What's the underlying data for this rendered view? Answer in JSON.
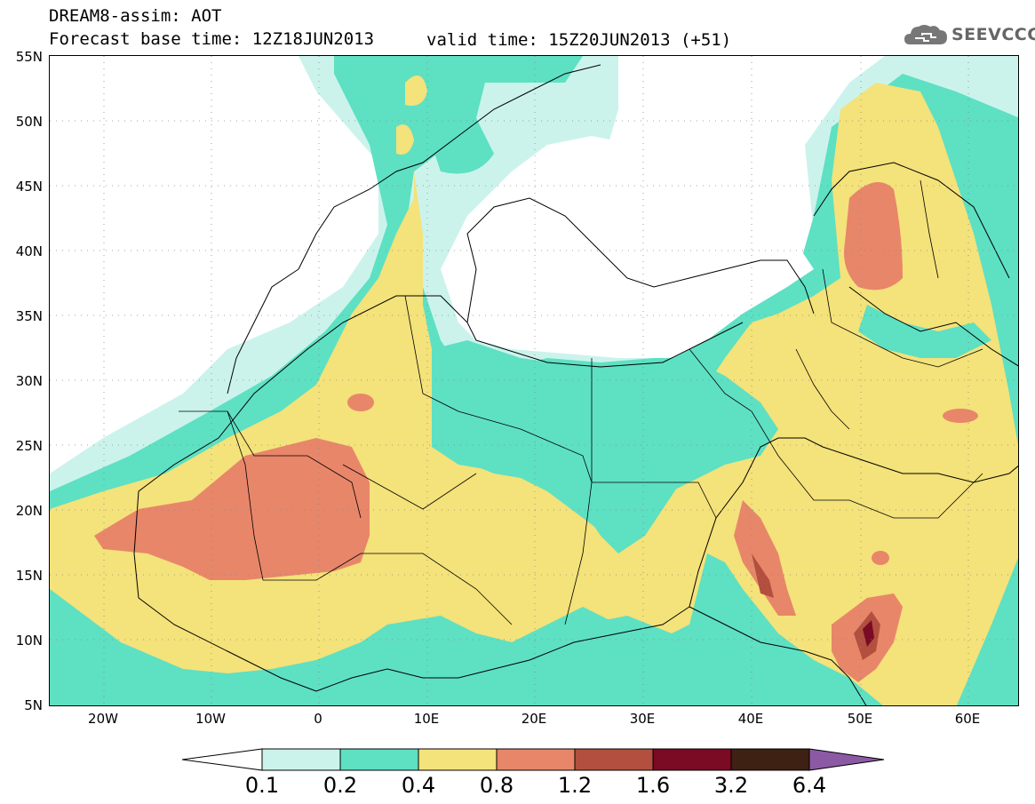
{
  "header": {
    "title": "DREAM8-assim: AOT",
    "forecast_base": "Forecast base time: 12Z18JUN2013",
    "valid_time": "valid time: 15Z20JUN2013 (+51)",
    "logo_text": "SEEVCCC",
    "logo_icon": "cloud-icon"
  },
  "axes": {
    "lat_labels": [
      "55N",
      "50N",
      "45N",
      "40N",
      "35N",
      "30N",
      "25N",
      "20N",
      "15N",
      "10N",
      "5N"
    ],
    "lon_labels": [
      "20W",
      "10W",
      "0",
      "10E",
      "20E",
      "30E",
      "40E",
      "50E",
      "60E"
    ]
  },
  "legend": {
    "ticks": [
      "0.1",
      "0.2",
      "0.4",
      "0.8",
      "1.2",
      "1.6",
      "3.2",
      "6.4"
    ],
    "colors": [
      "#ffffff",
      "#cbf3ec",
      "#5ee0c3",
      "#f4e27a",
      "#e8866a",
      "#b34f3e",
      "#7b0a24",
      "#3e2113",
      "#8c5aa5"
    ]
  },
  "colors": {
    "very_low": "#cbf3ec",
    "low": "#5ee0c3",
    "moderate": "#f4e27a",
    "high": "#e8866a",
    "very_high": "#b34f3e",
    "extreme": "#7b0a24"
  }
}
